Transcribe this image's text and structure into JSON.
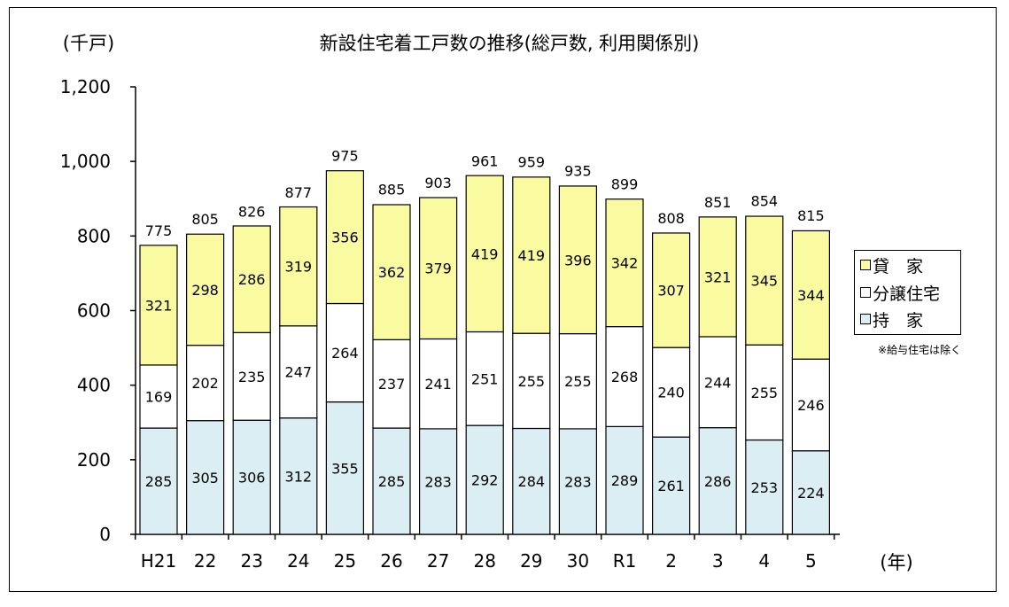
{
  "chart_data": {
    "type": "bar",
    "stacked": true,
    "title": "新設住宅着工戸数の推移(総戸数, 利用関係別)",
    "y_unit_label": "(千戸)",
    "x_unit_label": "(年)",
    "categories": [
      "H21",
      "22",
      "23",
      "24",
      "25",
      "26",
      "27",
      "28",
      "29",
      "30",
      "R1",
      "2",
      "3",
      "4",
      "5"
    ],
    "series": [
      {
        "name": "持　家",
        "color": "#dbeef4",
        "values": [
          285,
          305,
          306,
          312,
          355,
          285,
          283,
          292,
          284,
          283,
          289,
          261,
          286,
          253,
          224
        ]
      },
      {
        "name": "分譲住宅",
        "color": "#ffffff",
        "values": [
          169,
          202,
          235,
          247,
          264,
          237,
          241,
          251,
          255,
          255,
          268,
          240,
          244,
          255,
          246
        ]
      },
      {
        "name": "貸　家",
        "color": "#fafaa0",
        "values": [
          321,
          298,
          286,
          319,
          356,
          362,
          379,
          419,
          419,
          396,
          342,
          307,
          321,
          345,
          344
        ]
      }
    ],
    "totals": [
      775,
      805,
      826,
      877,
      975,
      885,
      903,
      961,
      959,
      935,
      899,
      808,
      851,
      854,
      815
    ],
    "ylim": [
      0,
      1200
    ],
    "yticks": [
      "0",
      "200",
      "400",
      "600",
      "800",
      "1,000",
      "1,200"
    ],
    "ytick_values": [
      0,
      200,
      400,
      600,
      800,
      1000,
      1200
    ],
    "grid": false,
    "legend_position": "right",
    "legend_order": [
      "貸　家",
      "分譲住宅",
      "持　家"
    ],
    "note": "※給与住宅は除く"
  }
}
